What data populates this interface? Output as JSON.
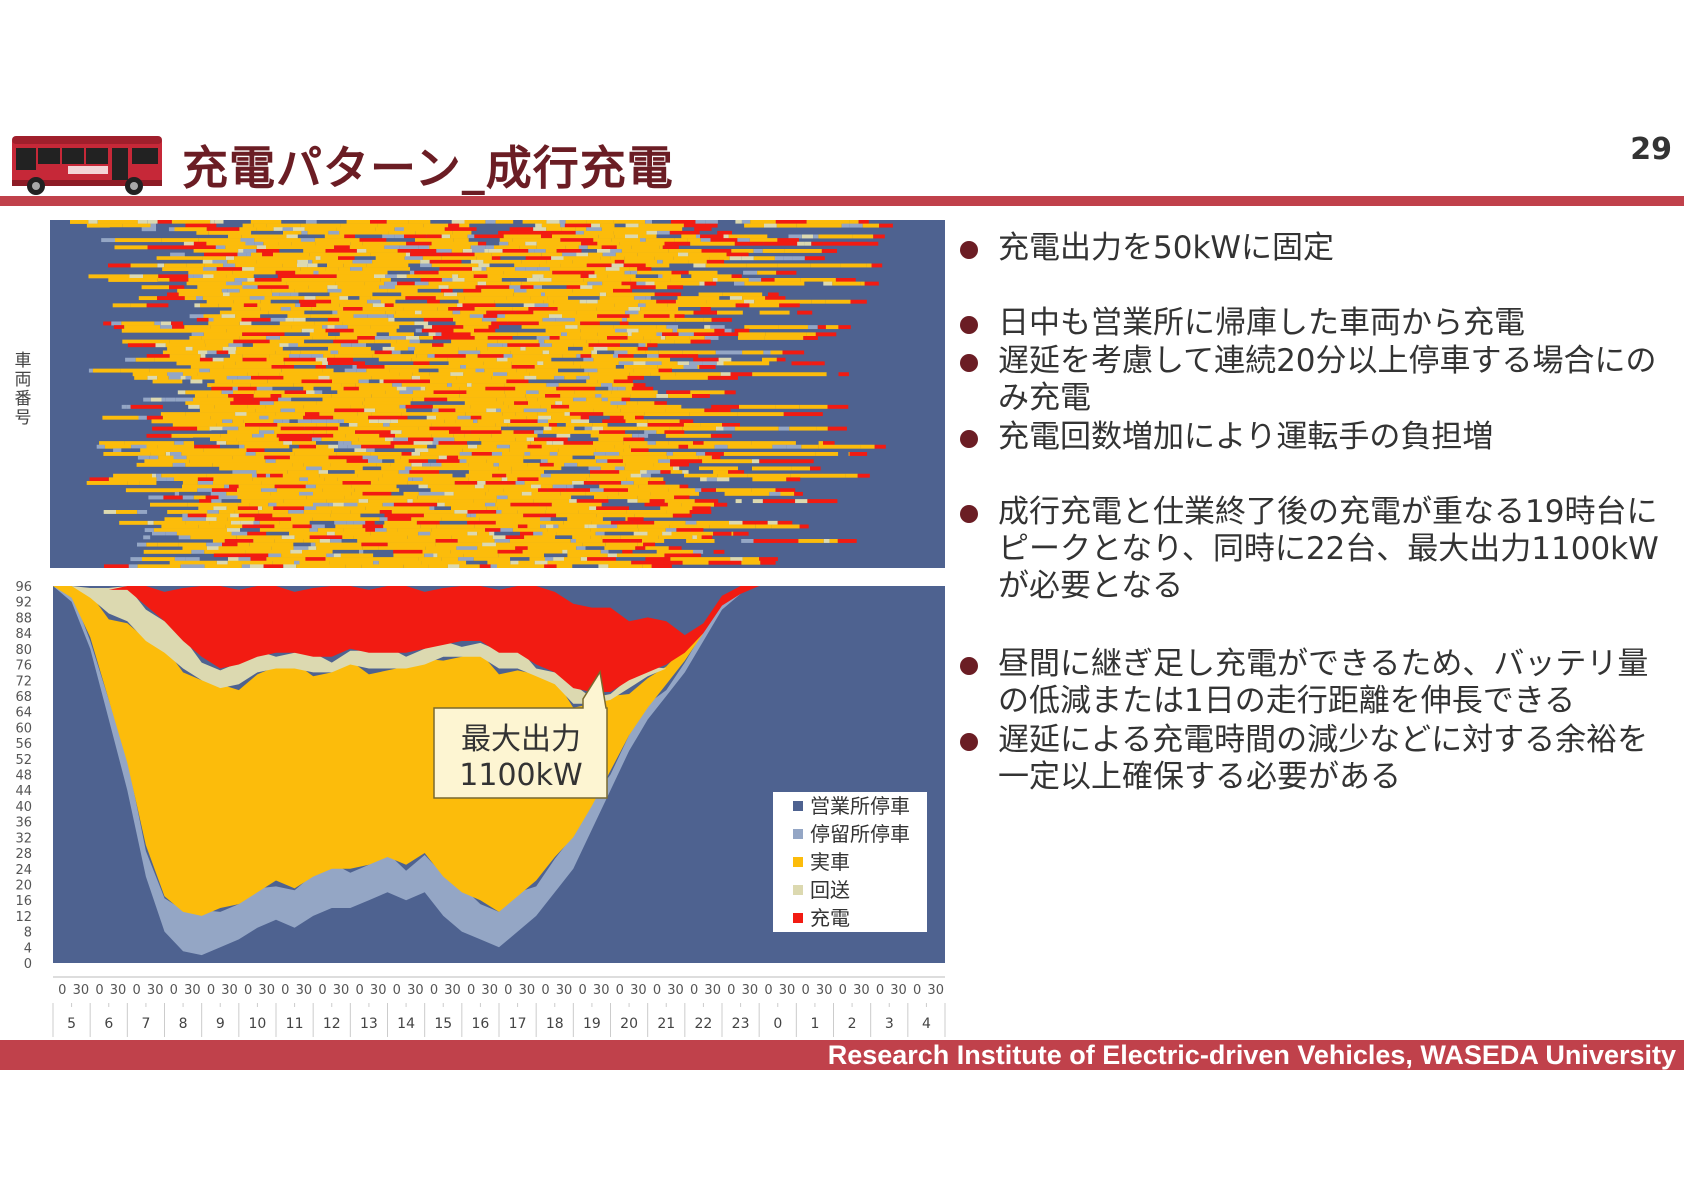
{
  "header": {
    "title": "充電パターン_成行充電",
    "page_number": "29",
    "bus_icon": "bus-icon"
  },
  "footer": {
    "text": "Research Institute of Electric-driven Vehicles, WASEDA University"
  },
  "heatmap": {
    "ylabel": "車両番号",
    "colors": {
      "depot": "#4e6290",
      "stop": "#94a6c5",
      "service": "#fcbc0b",
      "deadhead": "#dcd9b0",
      "charging": "#f21b12"
    }
  },
  "bullets": [
    "充電出力を50kWに固定",
    "日中も営業所に帰庫した車両から充電",
    "遅延を考慮して連続20分以上停車する場合にのみ充電",
    "充電回数増加により運転手の負担増",
    "成行充電と仕業終了後の充電が重なる19時台にピークとなり、同時に22台、最大出力1100kWが必要となる",
    "昼間に継ぎ足し充電ができるため、バッテリ量の低減または1日の走行距離を伸長できる",
    "遅延による充電時間の減少などに対する余裕を一定以上確保する必要がある"
  ],
  "callout": {
    "line1": "最大出力",
    "line2": "1100kW"
  },
  "chart_data": {
    "type": "area",
    "stacked": true,
    "ylim": [
      0,
      96
    ],
    "yticks": [
      0,
      4,
      8,
      12,
      16,
      20,
      24,
      28,
      32,
      36,
      40,
      44,
      48,
      52,
      56,
      60,
      64,
      68,
      72,
      76,
      80,
      84,
      88,
      92,
      96
    ],
    "minute_labels": [
      "0",
      "30"
    ],
    "hour_labels": [
      "5",
      "6",
      "7",
      "8",
      "9",
      "10",
      "11",
      "12",
      "13",
      "14",
      "15",
      "16",
      "17",
      "18",
      "19",
      "20",
      "21",
      "22",
      "23",
      "0",
      "1",
      "2",
      "3",
      "4"
    ],
    "time_hours": [
      5,
      5.5,
      6,
      6.5,
      7,
      7.5,
      8,
      8.5,
      9,
      9.5,
      10,
      10.5,
      11,
      11.5,
      12,
      12.5,
      13,
      13.5,
      14,
      14.5,
      15,
      15.5,
      16,
      16.5,
      17,
      17.5,
      18,
      18.5,
      19,
      19.5,
      20,
      20.5,
      21,
      21.5,
      22,
      22.5,
      23,
      23.5,
      24,
      24.5,
      25,
      25.5,
      26,
      26.5,
      27,
      27.5,
      28,
      28.5,
      29
    ],
    "series": [
      {
        "name": "営業所停車",
        "color": "#4e6290",
        "values": [
          96,
          92,
          80,
          62,
          44,
          22,
          8,
          3,
          2,
          4,
          6,
          9,
          11,
          9,
          12,
          14,
          14,
          16,
          18,
          16,
          18,
          12,
          8,
          6,
          4,
          8,
          12,
          18,
          24,
          34,
          44,
          54,
          62,
          68,
          74,
          82,
          90,
          94,
          96,
          96,
          96,
          96,
          96,
          96,
          96,
          96,
          96,
          96,
          96
        ]
      },
      {
        "name": "停留所停車",
        "color": "#94a6c5",
        "values": [
          0,
          1,
          3,
          5,
          7,
          8,
          9,
          10,
          10,
          10,
          9,
          9,
          10,
          10,
          10,
          10,
          10,
          9,
          9,
          9,
          10,
          10,
          10,
          10,
          9,
          9,
          9,
          9,
          8,
          6,
          5,
          4,
          3,
          3,
          3,
          2,
          1,
          0,
          0,
          0,
          0,
          0,
          0,
          0,
          0,
          0,
          0,
          0,
          0
        ]
      },
      {
        "name": "実車",
        "color": "#fcbc0b",
        "values": [
          0,
          3,
          10,
          22,
          36,
          52,
          62,
          62,
          60,
          56,
          56,
          56,
          54,
          56,
          52,
          50,
          52,
          50,
          48,
          50,
          48,
          56,
          60,
          62,
          62,
          58,
          52,
          44,
          34,
          26,
          18,
          12,
          8,
          4,
          2,
          0,
          0,
          0,
          0,
          0,
          0,
          0,
          0,
          0,
          0,
          0,
          0,
          0,
          0
        ]
      },
      {
        "name": "回送",
        "color": "#dcd9b0",
        "values": [
          0,
          0,
          3,
          6,
          8,
          9,
          8,
          7,
          6,
          5,
          5,
          4,
          4,
          4,
          4,
          4,
          4,
          4,
          4,
          4,
          4,
          3,
          4,
          4,
          4,
          4,
          3,
          3,
          4,
          3,
          2,
          2,
          1,
          1,
          0,
          0,
          0,
          0,
          0,
          0,
          0,
          0,
          0,
          0,
          0,
          0,
          0,
          0,
          0
        ]
      },
      {
        "name": "充電",
        "color": "#f21b12",
        "values": [
          0,
          0,
          0,
          1,
          1,
          5,
          9,
          14,
          18,
          21,
          20,
          18,
          17,
          17,
          18,
          18,
          16,
          17,
          17,
          17,
          16,
          15,
          14,
          14,
          17,
          21,
          20,
          22,
          22,
          21,
          20,
          16,
          14,
          10,
          6,
          3,
          2,
          1,
          0,
          0,
          0,
          0,
          0,
          0,
          0,
          0,
          0,
          0,
          0
        ]
      }
    ]
  }
}
